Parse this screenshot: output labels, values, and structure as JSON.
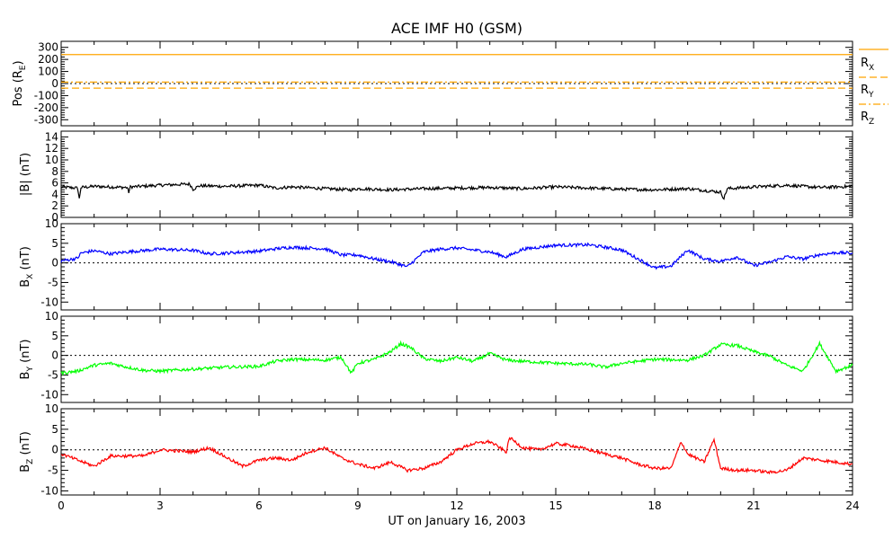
{
  "title": "ACE IMF H0 (GSM)",
  "xlabel": "UT on January 16, 2003",
  "x_ticks": [
    "0",
    "3",
    "6",
    "9",
    "12",
    "15",
    "18",
    "21",
    "24"
  ],
  "colors": {
    "pos": "#ffa500",
    "b_total": "#000000",
    "bx": "#0000ff",
    "by": "#00ff00",
    "bz": "#ff0000"
  },
  "chart_data": [
    {
      "type": "line",
      "title": "ACE IMF H0 (GSM)",
      "ylabel": "Pos (R",
      "ylabel_sub": "E",
      "ylabel_tail": ")",
      "xlim": [
        0,
        24
      ],
      "ylim": [
        -350,
        350
      ],
      "y_ticks": [
        "-300",
        "-200",
        "-100",
        "0",
        "100",
        "200",
        "300"
      ],
      "y_tick_values": [
        -300,
        -200,
        -100,
        0,
        100,
        200,
        300
      ],
      "legend": [
        {
          "main": "R",
          "sub": "X"
        },
        {
          "main": "R",
          "sub": "Y"
        },
        {
          "main": "R",
          "sub": "Z"
        }
      ],
      "series": [
        {
          "name": "RX",
          "dash": "solid",
          "x": [
            0,
            24
          ],
          "values": [
            240,
            240
          ]
        },
        {
          "name": "RY",
          "dash": "dash",
          "x": [
            0,
            24
          ],
          "values": [
            -38,
            -38
          ]
        },
        {
          "name": "RZ",
          "dash": "dashdot",
          "x": [
            0,
            24
          ],
          "values": [
            12,
            12
          ]
        }
      ]
    },
    {
      "type": "line",
      "ylabel": "|B| (nT)",
      "xlim": [
        0,
        24
      ],
      "ylim": [
        0,
        15
      ],
      "y_ticks": [
        "0",
        "2",
        "4",
        "6",
        "8",
        "10",
        "12",
        "14"
      ],
      "y_tick_values": [
        0,
        2,
        4,
        6,
        8,
        10,
        12,
        14
      ],
      "series": [
        {
          "x": [
            0,
            0.5,
            0.55,
            0.6,
            1,
            1.5,
            2,
            2.05,
            2.1,
            3,
            3.9,
            4,
            4.2,
            5,
            6,
            6.5,
            7,
            8,
            8.8,
            9,
            10,
            11,
            12,
            13,
            14,
            15,
            16,
            17,
            18,
            19,
            20,
            20.1,
            20.2,
            21,
            22,
            23,
            24
          ],
          "values": [
            5.3,
            5.1,
            3.2,
            5.2,
            5.4,
            5.3,
            5.2,
            4.4,
            5.3,
            5.6,
            5.8,
            4.9,
            5.5,
            5.4,
            5.6,
            5.1,
            5.3,
            5.0,
            4.8,
            5.0,
            4.8,
            5.0,
            5.1,
            5.2,
            5.0,
            5.3,
            5.1,
            4.9,
            4.8,
            5.0,
            4.4,
            3.3,
            5.0,
            5.3,
            5.6,
            5.2,
            5.4
          ]
        }
      ]
    },
    {
      "type": "line",
      "ylabel": "B",
      "ylabel_sub": "X",
      "ylabel_tail": " (nT)",
      "xlim": [
        0,
        24
      ],
      "ylim": [
        -12,
        10
      ],
      "y_ticks": [
        "-10",
        "-5",
        "0",
        "5",
        "10"
      ],
      "y_tick_values": [
        -10,
        -5,
        0,
        5,
        10
      ],
      "series": [
        {
          "x": [
            0,
            0.5,
            0.6,
            1,
            1.5,
            2,
            3,
            4,
            4.5,
            5,
            6,
            6.5,
            7,
            8,
            8.5,
            9,
            9.5,
            10,
            10.5,
            11,
            11.5,
            12,
            13,
            13.5,
            14,
            15,
            16,
            16.5,
            17,
            17.5,
            18,
            18.5,
            19,
            19.5,
            20,
            20.5,
            21,
            21.5,
            22,
            22.5,
            23,
            23.5,
            24
          ],
          "values": [
            0.5,
            1.2,
            2.5,
            3.1,
            2.3,
            2.8,
            3.5,
            3.2,
            2.3,
            2.5,
            3.0,
            3.6,
            4.0,
            3.6,
            2.0,
            2.0,
            1.0,
            0.3,
            -1.0,
            2.8,
            3.5,
            3.8,
            2.8,
            1.5,
            3.5,
            4.5,
            4.6,
            4.0,
            3.3,
            1.0,
            -1.3,
            -0.8,
            3.3,
            1.0,
            0.4,
            1.5,
            -0.7,
            0.2,
            1.6,
            1.0,
            2.1,
            2.6,
            2.5
          ]
        }
      ]
    },
    {
      "type": "line",
      "ylabel": "B",
      "ylabel_sub": "Y",
      "ylabel_tail": " (nT)",
      "xlim": [
        0,
        24
      ],
      "ylim": [
        -12,
        10
      ],
      "y_ticks": [
        "-10",
        "-5",
        "0",
        "5",
        "10"
      ],
      "y_tick_values": [
        -10,
        -5,
        0,
        5,
        10
      ],
      "series": [
        {
          "x": [
            0,
            0.5,
            1,
            1.5,
            2,
            2.5,
            3,
            4,
            5,
            6,
            6.5,
            7,
            8,
            8.5,
            8.8,
            9,
            9.5,
            10,
            10.3,
            10.6,
            11,
            11.5,
            12,
            12.5,
            13,
            13.5,
            14,
            15,
            16,
            16.5,
            17,
            18,
            19,
            19.5,
            20,
            20.5,
            21,
            21.5,
            22,
            22.5,
            23,
            23.5,
            24
          ],
          "values": [
            -4.5,
            -4.0,
            -2.5,
            -2.0,
            -3.0,
            -3.8,
            -4.0,
            -3.5,
            -3.0,
            -2.8,
            -1.5,
            -1.0,
            -1.2,
            -0.5,
            -4.5,
            -2.0,
            -1.0,
            1.0,
            3.0,
            2.0,
            -0.8,
            -1.5,
            -0.5,
            -1.5,
            0.5,
            -1.2,
            -1.5,
            -2.0,
            -2.3,
            -3.0,
            -2.0,
            -1.0,
            -1.2,
            0.0,
            2.8,
            2.5,
            1.0,
            -0.2,
            -2.5,
            -4.0,
            3.0,
            -4.0,
            -2.5
          ]
        }
      ]
    },
    {
      "type": "line",
      "ylabel": "B",
      "ylabel_sub": "Z",
      "ylabel_tail": " (nT)",
      "xlim": [
        0,
        24
      ],
      "ylim": [
        -11,
        10
      ],
      "y_ticks": [
        "-10",
        "-5",
        "0",
        "5",
        "10"
      ],
      "y_tick_values": [
        -10,
        -5,
        0,
        5,
        10
      ],
      "series": [
        {
          "x": [
            0,
            0.5,
            1,
            1.5,
            2,
            2.5,
            3,
            4,
            4.5,
            5,
            5.5,
            6,
            6.5,
            7,
            7.5,
            8,
            8.5,
            9,
            9.5,
            10,
            10.5,
            11,
            11.5,
            12,
            12.5,
            13,
            13.5,
            13.6,
            14,
            14.5,
            15,
            15.5,
            16,
            16.5,
            17,
            17.5,
            18,
            18.5,
            18.8,
            19,
            19.5,
            19.8,
            20,
            20.5,
            21,
            21.5,
            22,
            22.5,
            23,
            23.5,
            24
          ],
          "values": [
            -1.0,
            -2.5,
            -4.0,
            -1.5,
            -1.5,
            -1.5,
            0.0,
            -0.5,
            0.5,
            -1.8,
            -4.0,
            -2.5,
            -2.0,
            -2.5,
            -0.5,
            0.5,
            -2.0,
            -3.5,
            -4.5,
            -3.0,
            -5.0,
            -4.5,
            -3.0,
            0.0,
            1.5,
            2.0,
            -0.5,
            3.0,
            0.5,
            0.0,
            1.5,
            1.0,
            0.0,
            -1.0,
            -2.0,
            -3.5,
            -4.5,
            -4.5,
            2.0,
            -1.0,
            -3.0,
            2.5,
            -4.5,
            -5.0,
            -5.0,
            -5.5,
            -5.0,
            -2.0,
            -2.5,
            -3.0,
            -3.5
          ]
        }
      ]
    }
  ]
}
